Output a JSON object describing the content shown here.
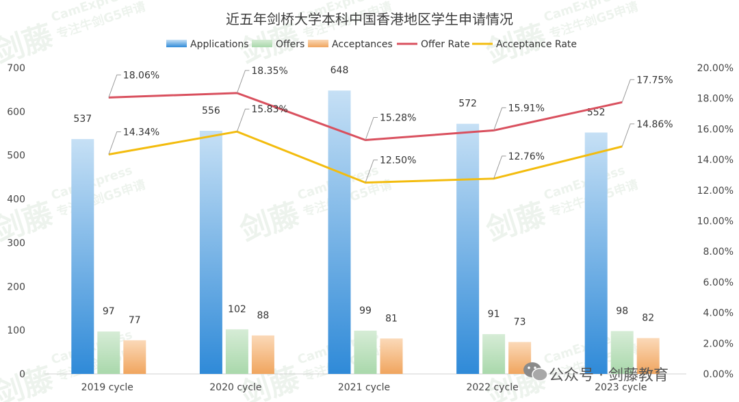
{
  "chart_data": {
    "type": "bar",
    "title": "近五年剑桥大学本科中国香港地区学生申请情况",
    "categories": [
      "2019 cycle",
      "2020 cycle",
      "2021 cycle",
      "2022 cycle",
      "2023 cycle"
    ],
    "series": [
      {
        "name": "Applications",
        "kind": "bar",
        "axis": "left",
        "values": [
          537,
          556,
          648,
          572,
          552
        ],
        "labels": [
          "537",
          "556",
          "648",
          "572",
          "552"
        ]
      },
      {
        "name": "Offers",
        "kind": "bar",
        "axis": "left",
        "values": [
          97,
          102,
          99,
          91,
          98
        ],
        "labels": [
          "97",
          "102",
          "99",
          "91",
          "98"
        ]
      },
      {
        "name": "Acceptances",
        "kind": "bar",
        "axis": "left",
        "values": [
          77,
          88,
          81,
          73,
          82
        ],
        "labels": [
          "77",
          "88",
          "81",
          "73",
          "82"
        ]
      },
      {
        "name": "Offer Rate",
        "kind": "line",
        "axis": "right",
        "values": [
          18.06,
          18.35,
          15.28,
          15.91,
          17.75
        ],
        "labels": [
          "18.06%",
          "18.35%",
          "15.28%",
          "15.91%",
          "17.75%"
        ]
      },
      {
        "name": "Acceptance Rate",
        "kind": "line",
        "axis": "right",
        "values": [
          14.34,
          15.83,
          12.5,
          12.76,
          14.86
        ],
        "labels": [
          "14.34%",
          "15.83%",
          "12.50%",
          "12.76%",
          "14.86%"
        ]
      }
    ],
    "y_left": {
      "min": 0,
      "max": 700,
      "ticks": [
        "0",
        "100",
        "200",
        "300",
        "400",
        "500",
        "600",
        "700"
      ]
    },
    "y_right": {
      "min": 0,
      "max": 20,
      "ticks": [
        "0.00%",
        "2.00%",
        "4.00%",
        "6.00%",
        "8.00%",
        "10.00%",
        "12.00%",
        "14.00%",
        "16.00%",
        "18.00%",
        "20.00%"
      ]
    },
    "legend_position": "top-center",
    "grid": false
  },
  "colors": {
    "applications_top": "#c6e0f5",
    "applications_bottom": "#2f8ad8",
    "offers_top": "#d6ecd6",
    "offers_bottom": "#a9d8ab",
    "acceptances_top": "#fbd9b8",
    "acceptances_bottom": "#f0a55e",
    "offer_rate": "#d9505e",
    "acceptance_rate": "#f3bc0e"
  },
  "watermark": {
    "brand": "CamExpress",
    "tagline": "专注牛剑G5申请",
    "logo_text": "剑藤"
  },
  "footer": {
    "wechat_label": "公众号 · 剑藤教育",
    "wechat_icon": "wechat-icon"
  }
}
